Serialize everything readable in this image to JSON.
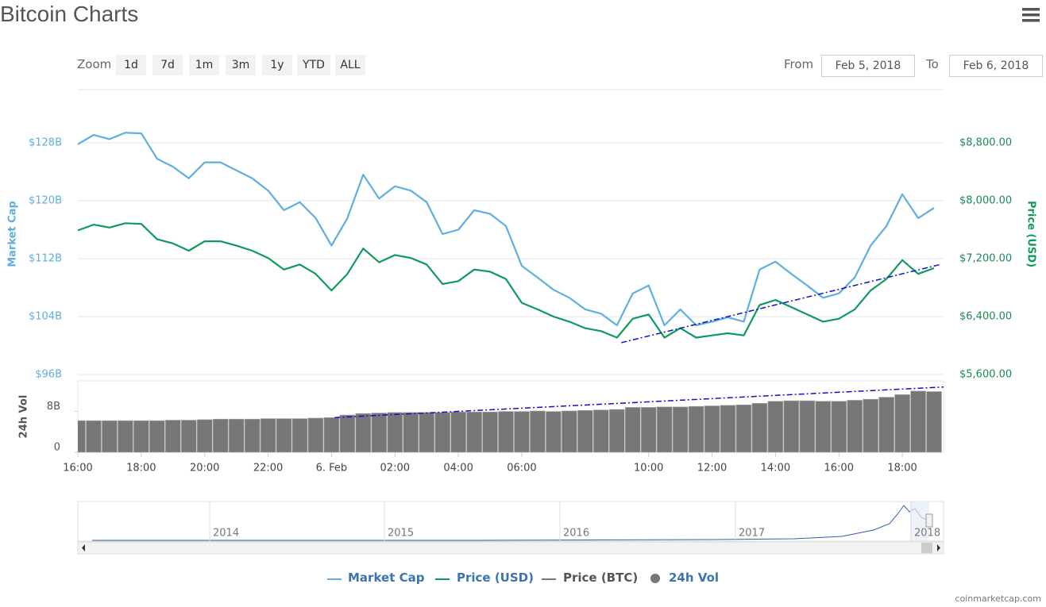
{
  "header": {
    "title": "Bitcoin Charts"
  },
  "toolbar": {
    "zoom_label": "Zoom",
    "zoom_buttons": [
      "1d",
      "7d",
      "1m",
      "3m",
      "1y",
      "YTD",
      "ALL"
    ],
    "from_label": "From",
    "from": "Feb 5, 2018",
    "to_label": "To",
    "to": "Feb 6, 2018"
  },
  "chart_data": [
    {
      "type": "line",
      "ylabel": "Market Cap",
      "y2label": "Price (USD)",
      "x": [
        16,
        16.5,
        17,
        17.5,
        18,
        18.5,
        19,
        19.5,
        20,
        20.5,
        21,
        21.5,
        22,
        22.5,
        23,
        23.5,
        24,
        24.5,
        25,
        25.5,
        26,
        26.5,
        27,
        27.5,
        28,
        28.5,
        29,
        29.5,
        30,
        30.5,
        31,
        31.5,
        32,
        32.5,
        33,
        33.5,
        34,
        34.5,
        35,
        35.5,
        36,
        36.5,
        37,
        37.5,
        38,
        38.5,
        39,
        39.5,
        40,
        40.5,
        41,
        41.5,
        42,
        42.5,
        43
      ],
      "xlim": [
        16,
        43.3
      ],
      "ylim": [
        96,
        136
      ],
      "yticks": [
        {
          "value": 96,
          "label": "$96B"
        },
        {
          "value": 104,
          "label": "$104B"
        },
        {
          "value": 112,
          "label": "$112B"
        },
        {
          "value": 120,
          "label": "$120B"
        },
        {
          "value": 128,
          "label": "$128B"
        }
      ],
      "y2lim": [
        5600,
        9600
      ],
      "y2ticks": [
        {
          "value": 5600,
          "label": "$5,600.00"
        },
        {
          "value": 6400,
          "label": "$6,400.00"
        },
        {
          "value": 7200,
          "label": "$7,200.00"
        },
        {
          "value": 8000,
          "label": "$8,000.00"
        },
        {
          "value": 8800,
          "label": "$8,800.00"
        }
      ],
      "grid": true,
      "series": [
        {
          "name": "Market Cap",
          "color": "#5eaee0",
          "values": [
            127.8,
            129.1,
            128.5,
            129.4,
            129.3,
            125.8,
            124.7,
            123.1,
            125.3,
            125.3,
            124.2,
            123.1,
            121.4,
            118.7,
            119.8,
            117.6,
            113.8,
            117.6,
            123.6,
            120.3,
            122.0,
            121.4,
            119.8,
            115.4,
            116.0,
            118.7,
            118.2,
            116.5,
            111.0,
            109.4,
            107.7,
            106.6,
            105.0,
            104.4,
            102.8,
            107.2,
            108.3,
            102.8,
            105.0,
            102.8,
            103.3,
            103.9,
            103.3,
            110.5,
            111.6,
            109.9,
            108.3,
            106.6,
            107.2,
            109.4,
            113.8,
            116.5,
            120.9,
            117.6,
            119.0
          ]
        },
        {
          "name": "Price (USD)",
          "color": "#0e9a5c",
          "axis": "y2",
          "values": [
            7590,
            7670,
            7630,
            7690,
            7680,
            7470,
            7410,
            7310,
            7440,
            7440,
            7380,
            7310,
            7210,
            7050,
            7120,
            6990,
            6760,
            6990,
            7340,
            7150,
            7250,
            7210,
            7120,
            6850,
            6890,
            7050,
            7020,
            6920,
            6590,
            6500,
            6400,
            6330,
            6240,
            6200,
            6110,
            6370,
            6430,
            6110,
            6240,
            6110,
            6140,
            6170,
            6140,
            6560,
            6630,
            6530,
            6430,
            6330,
            6370,
            6500,
            6760,
            6920,
            7180,
            6990,
            7070
          ]
        }
      ],
      "extra_legend": {
        "name": "Price (BTC)",
        "color": "#777777"
      },
      "trendlines": [
        {
          "x": [
            33.14,
            43.2
          ],
          "values": [
            6040,
            7120
          ],
          "axis": "y2",
          "color": "#1010cc"
        }
      ]
    },
    {
      "type": "bar",
      "ylabel": "24h Vol",
      "x": [
        16,
        16.5,
        17,
        17.5,
        18,
        18.5,
        19,
        19.5,
        20,
        20.5,
        21,
        21.5,
        22,
        22.5,
        23,
        23.5,
        24,
        24.5,
        25,
        25.5,
        26,
        26.5,
        27,
        27.5,
        28,
        28.5,
        29,
        29.5,
        30,
        30.5,
        31,
        31.5,
        32,
        32.5,
        33,
        33.5,
        34,
        34.5,
        35,
        35.5,
        36,
        36.5,
        37,
        37.5,
        38,
        38.5,
        39,
        39.5,
        40,
        40.5,
        41,
        41.5,
        42,
        42.5,
        43
      ],
      "xlim": [
        16,
        43.3
      ],
      "xticks": [
        {
          "value": 16,
          "label": "16:00"
        },
        {
          "value": 18,
          "label": "18:00"
        },
        {
          "value": 20,
          "label": "20:00"
        },
        {
          "value": 22,
          "label": "22:00"
        },
        {
          "value": 24,
          "label": "6. Feb"
        },
        {
          "value": 26,
          "label": "02:00"
        },
        {
          "value": 28,
          "label": "04:00"
        },
        {
          "value": 30,
          "label": "06:00"
        },
        {
          "value": 34,
          "label": "10:00"
        },
        {
          "value": 36,
          "label": "12:00"
        },
        {
          "value": 38,
          "label": "14:00"
        },
        {
          "value": 40,
          "label": "16:00"
        },
        {
          "value": 42,
          "label": "18:00"
        }
      ],
      "ylim": [
        0,
        14
      ],
      "yticks": [
        0,
        {
          "value": 8,
          "label": "8B"
        }
      ],
      "series": [
        {
          "name": "24h Vol",
          "color": "#777777",
          "values": [
            6.2,
            6.2,
            6.2,
            6.2,
            6.2,
            6.2,
            6.3,
            6.3,
            6.4,
            6.5,
            6.5,
            6.5,
            6.6,
            6.6,
            6.6,
            6.7,
            6.8,
            7.3,
            7.6,
            7.7,
            7.8,
            7.8,
            7.8,
            7.8,
            7.9,
            7.9,
            7.9,
            8.0,
            8.0,
            8.1,
            8.0,
            8.1,
            8.2,
            8.3,
            8.4,
            8.8,
            8.8,
            8.9,
            8.9,
            9.0,
            9.1,
            9.2,
            9.3,
            9.6,
            10.0,
            10.1,
            10.1,
            10.0,
            10.0,
            10.2,
            10.4,
            10.8,
            11.3,
            12.0,
            11.9
          ]
        }
      ],
      "trendlines": [
        {
          "x": [
            24.1,
            43.3
          ],
          "values": [
            6.8,
            12.8
          ],
          "color": "#1010cc"
        }
      ]
    }
  ],
  "navigator": {
    "labels": [
      "2014",
      "2015",
      "2016",
      "2017",
      "2018"
    ]
  },
  "credit": "coinmarketcap.com"
}
